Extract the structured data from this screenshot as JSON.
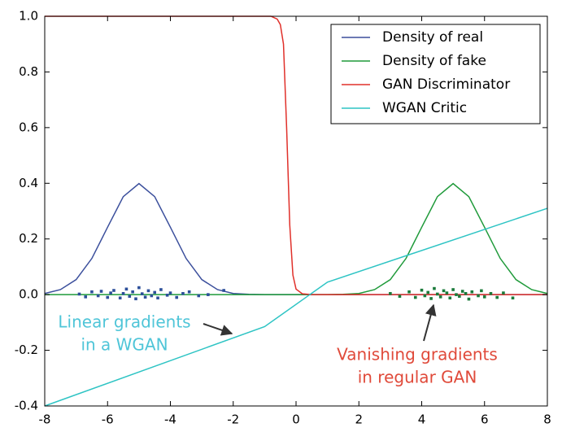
{
  "chart_data": {
    "type": "line",
    "xlim": [
      -8,
      8
    ],
    "ylim": [
      -0.4,
      1.0
    ],
    "xticks": [
      -8,
      -6,
      -4,
      -2,
      0,
      2,
      4,
      6,
      8
    ],
    "yticks": [
      -0.4,
      -0.2,
      {
        "value": 0,
        "label": "0.0"
      },
      0.2,
      0.4,
      0.6,
      0.8,
      {
        "value": 1,
        "label": "1.0"
      }
    ],
    "legend": "upper right",
    "series": [
      {
        "name": "Density of real",
        "color": "#3b4f9c",
        "x": [
          -8,
          -7.5,
          -7,
          -6.5,
          -6,
          -5.5,
          -5,
          -4.5,
          -4,
          -3.5,
          -3,
          -2.5,
          -2,
          -1.5,
          -1,
          -0.5,
          0,
          0.5,
          1,
          1.5,
          2,
          2.5,
          3,
          3.5,
          4,
          4.5,
          5,
          5.5,
          6,
          6.5,
          7,
          7.5,
          8
        ],
        "values": [
          0.004,
          0.018,
          0.054,
          0.13,
          0.242,
          0.352,
          0.399,
          0.352,
          0.242,
          0.13,
          0.054,
          0.018,
          0.004,
          0.001,
          0,
          0,
          0,
          0,
          0,
          0,
          0,
          0,
          0,
          0,
          0,
          0,
          0,
          0,
          0,
          0,
          0,
          0,
          0
        ]
      },
      {
        "name": "Density of fake",
        "color": "#1f9a3a",
        "x": [
          -8,
          -7.5,
          -7,
          -6.5,
          -6,
          -5.5,
          -5,
          -4.5,
          -4,
          -3.5,
          -3,
          -2.5,
          -2,
          -1.5,
          -1,
          -0.5,
          0,
          0.5,
          1,
          1.5,
          2,
          2.5,
          3,
          3.5,
          4,
          4.5,
          5,
          5.5,
          6,
          6.5,
          7,
          7.5,
          8
        ],
        "values": [
          0,
          0,
          0,
          0,
          0,
          0,
          0,
          0,
          0,
          0,
          0,
          0,
          0,
          0,
          0,
          0,
          0,
          0,
          0,
          0.001,
          0.004,
          0.018,
          0.054,
          0.13,
          0.242,
          0.352,
          0.399,
          0.352,
          0.242,
          0.13,
          0.054,
          0.018,
          0.004
        ]
      },
      {
        "name": "GAN Discriminator",
        "color": "#e0302a",
        "x": [
          -8,
          -1,
          -0.8,
          -0.6,
          -0.5,
          -0.4,
          -0.3,
          -0.2,
          -0.1,
          0,
          0.2,
          0.5,
          8
        ],
        "values": [
          1,
          1,
          1,
          0.99,
          0.97,
          0.9,
          0.6,
          0.25,
          0.07,
          0.02,
          0.003,
          0,
          0
        ]
      },
      {
        "name": "WGAN Critic",
        "color": "#2ec4c4",
        "x": [
          -8,
          -1,
          1,
          8
        ],
        "values": [
          -0.4,
          -0.115,
          0.045,
          0.31
        ]
      }
    ],
    "scatter_points": [
      {
        "color": "#2c4f9a",
        "x": [
          -6.9,
          -6.7,
          -6.5,
          -6.3,
          -6.2,
          -6.0,
          -5.9,
          -5.8,
          -5.6,
          -5.5,
          -5.4,
          -5.3,
          -5.2,
          -5.1,
          -5.0,
          -4.9,
          -4.8,
          -4.7,
          -4.6,
          -4.5,
          -4.4,
          -4.3,
          -4.1,
          -4.0,
          -3.8,
          -3.6,
          -3.4,
          -3.1,
          -2.8,
          -2.3
        ],
        "values": [
          0.002,
          -0.008,
          0.01,
          -0.004,
          0.012,
          -0.01,
          0.006,
          0.015,
          -0.012,
          0.004,
          0.02,
          -0.006,
          0.01,
          -0.015,
          0.025,
          0.003,
          -0.009,
          0.014,
          -0.004,
          0.008,
          -0.012,
          0.018,
          -0.002,
          0.006,
          -0.01,
          0.004,
          0.01,
          -0.004,
          0.0,
          0.015
        ]
      },
      {
        "color": "#1a7a3a",
        "x": [
          3.0,
          3.3,
          3.6,
          3.8,
          4.0,
          4.1,
          4.2,
          4.3,
          4.4,
          4.5,
          4.6,
          4.7,
          4.8,
          4.9,
          5.0,
          5.1,
          5.2,
          5.3,
          5.4,
          5.5,
          5.6,
          5.8,
          5.9,
          6.0,
          6.2,
          6.4,
          6.6,
          6.9
        ],
        "values": [
          0.004,
          -0.006,
          0.01,
          -0.01,
          0.016,
          -0.004,
          0.008,
          -0.014,
          0.022,
          0.002,
          -0.008,
          0.014,
          0.006,
          -0.012,
          0.018,
          0.0,
          -0.006,
          0.012,
          0.004,
          -0.016,
          0.01,
          -0.004,
          0.014,
          -0.008,
          0.004,
          -0.01,
          0.006,
          -0.012
        ]
      }
    ],
    "annotations": [
      {
        "lines": [
          "Linear gradients",
          "in a WGAN"
        ],
        "color": "#4fc5d8"
      },
      {
        "lines": [
          "Vanishing gradients",
          "in regular GAN"
        ],
        "color": "#e04a3a"
      }
    ]
  }
}
